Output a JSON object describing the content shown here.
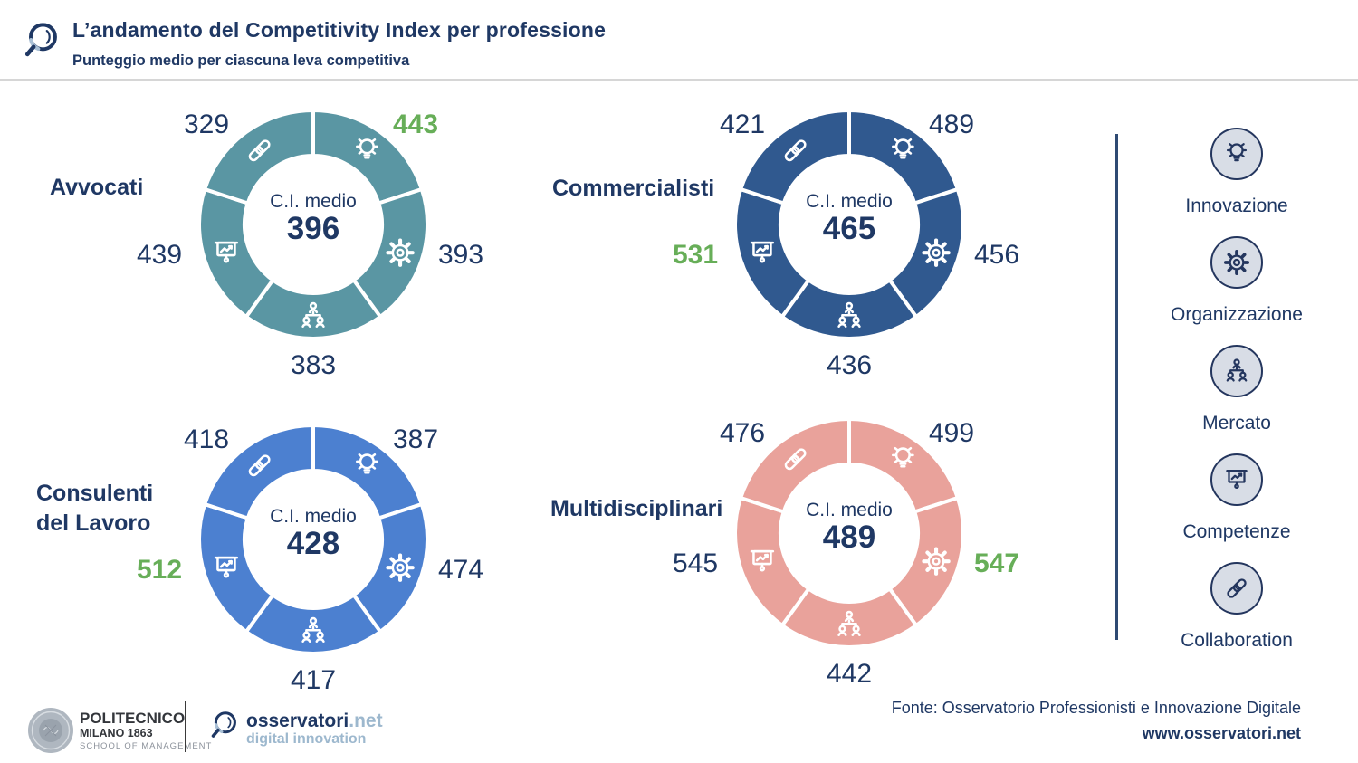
{
  "header": {
    "title": "L’andamento del Competitivity Index per professione",
    "subtitle": "Punteggio medio per ciascuna leva competitiva",
    "logo_icon": "magnifier-logo-icon"
  },
  "colors": {
    "navy_text": "#1F3864",
    "highlight_green": "#67AE58",
    "teal_ring": "#5A96A3",
    "darkblue_ring": "#30598F",
    "blue_ring": "#4C80D0",
    "pink_ring": "#E9A29B",
    "legend_circle_fill": "#D8DDE6",
    "legend_circle_border": "#24365E",
    "header_rule": "#D6D6D6"
  },
  "chart_data": {
    "type": "donut-multiple",
    "note": "4 donut charts, 5 equal 72-degree segments each, clockwise from 12 o'clock",
    "levers": [
      "Innovazione",
      "Organizzazione",
      "Mercato",
      "Competenze",
      "Collaboration"
    ],
    "lever_icons": [
      "lightbulb-icon",
      "gear-icon",
      "org-people-icon",
      "presentation-chart-icon",
      "handshake-icon"
    ],
    "value_color": "#1F3864",
    "highlight_color": "#67AE58",
    "charts": [
      {
        "profession": "Avvocati",
        "label_lines": [
          "Avvocati"
        ],
        "center_label": "C.I. medio",
        "center_value": "396",
        "ring_color": "#5A96A3",
        "values": [
          "443",
          "393",
          "383",
          "439",
          "329"
        ],
        "highlight_index": 0
      },
      {
        "profession": "Commercialisti",
        "label_lines": [
          "Commercialisti"
        ],
        "center_label": "C.I. medio",
        "center_value": "465",
        "ring_color": "#30598F",
        "values": [
          "489",
          "456",
          "436",
          "531",
          "421"
        ],
        "highlight_index": 3
      },
      {
        "profession": "Consulenti del Lavoro",
        "label_lines": [
          "Consulenti",
          "del Lavoro"
        ],
        "center_label": "C.I. medio",
        "center_value": "428",
        "ring_color": "#4C80D0",
        "values": [
          "387",
          "474",
          "417",
          "512",
          "418"
        ],
        "highlight_index": 3
      },
      {
        "profession": "Multidisciplinari",
        "label_lines": [
          "Multidisciplinari"
        ],
        "center_label": "C.I. medio",
        "center_value": "489",
        "ring_color": "#E9A29B",
        "values": [
          "499",
          "547",
          "442",
          "545",
          "476"
        ],
        "highlight_index": 1
      }
    ]
  },
  "legend": {
    "items": [
      {
        "label": "Innovazione",
        "icon": "lightbulb-icon"
      },
      {
        "label": "Organizzazione",
        "icon": "gear-icon"
      },
      {
        "label": "Mercato",
        "icon": "org-people-icon"
      },
      {
        "label": "Competenze",
        "icon": "presentation-chart-icon"
      },
      {
        "label": "Collaboration",
        "icon": "handshake-icon"
      }
    ]
  },
  "footer": {
    "politecnico": {
      "seal_icon": "politecnico-seal-icon",
      "line1": "POLITECNICO",
      "line2": "MILANO 1863",
      "line3": "SCHOOL OF MANAGEMENT"
    },
    "osservatori": {
      "logo_icon": "magnifier-logo-icon",
      "name": "osservatori",
      "net": ".net",
      "tagline": "digital innovation"
    },
    "fonte": "Fonte: Osservatorio Professionisti e Innovazione Digitale",
    "url": "www.osservatori.net"
  }
}
